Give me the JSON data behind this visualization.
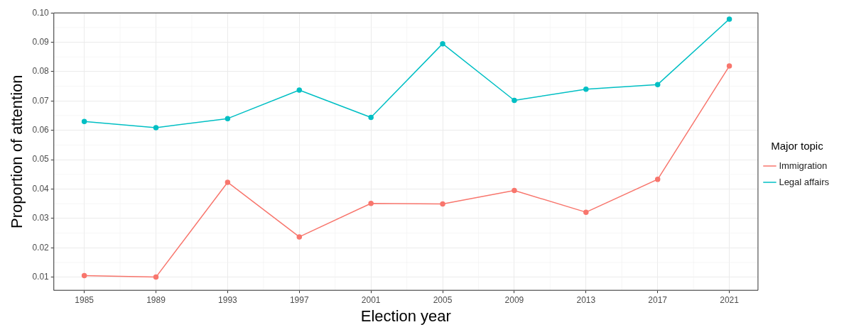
{
  "chart_data": {
    "type": "line",
    "xlabel": "Election year",
    "ylabel": "Proportion of attention",
    "legend_title": "Major topic",
    "legend": "right",
    "grid": true,
    "marker": "circle",
    "line_style": "solid",
    "x": [
      1985,
      1989,
      1993,
      1997,
      2001,
      2005,
      2009,
      2013,
      2017,
      2021
    ],
    "xlim": [
      1983.3,
      2022.6
    ],
    "xticks": [
      1985,
      1989,
      1993,
      1997,
      2001,
      2005,
      2009,
      2013,
      2017,
      2021
    ],
    "ylim": [
      0.0055,
      0.1
    ],
    "yticks": [
      {
        "value": 0.01,
        "label": "0.01"
      },
      {
        "value": 0.02,
        "label": "0.02"
      },
      {
        "value": 0.03,
        "label": "0.03"
      },
      {
        "value": 0.04,
        "label": "0.04"
      },
      {
        "value": 0.05,
        "label": "0.05"
      },
      {
        "value": 0.06,
        "label": "0.06"
      },
      {
        "value": 0.07,
        "label": "0.07"
      },
      {
        "value": 0.08,
        "label": "0.08"
      },
      {
        "value": 0.09,
        "label": "0.09"
      },
      {
        "value": 0.1,
        "label": "0.10"
      }
    ],
    "series": [
      {
        "name": "Immigration",
        "color": "#f8766d",
        "values": [
          0.0105,
          0.01,
          0.0423,
          0.0237,
          0.0351,
          0.0349,
          0.0395,
          0.0321,
          0.0433,
          0.0819
        ]
      },
      {
        "name": "Legal affairs",
        "color": "#00bfc4",
        "values": [
          0.063,
          0.0609,
          0.064,
          0.0737,
          0.0644,
          0.0895,
          0.0702,
          0.074,
          0.0756,
          0.0979
        ]
      }
    ]
  }
}
